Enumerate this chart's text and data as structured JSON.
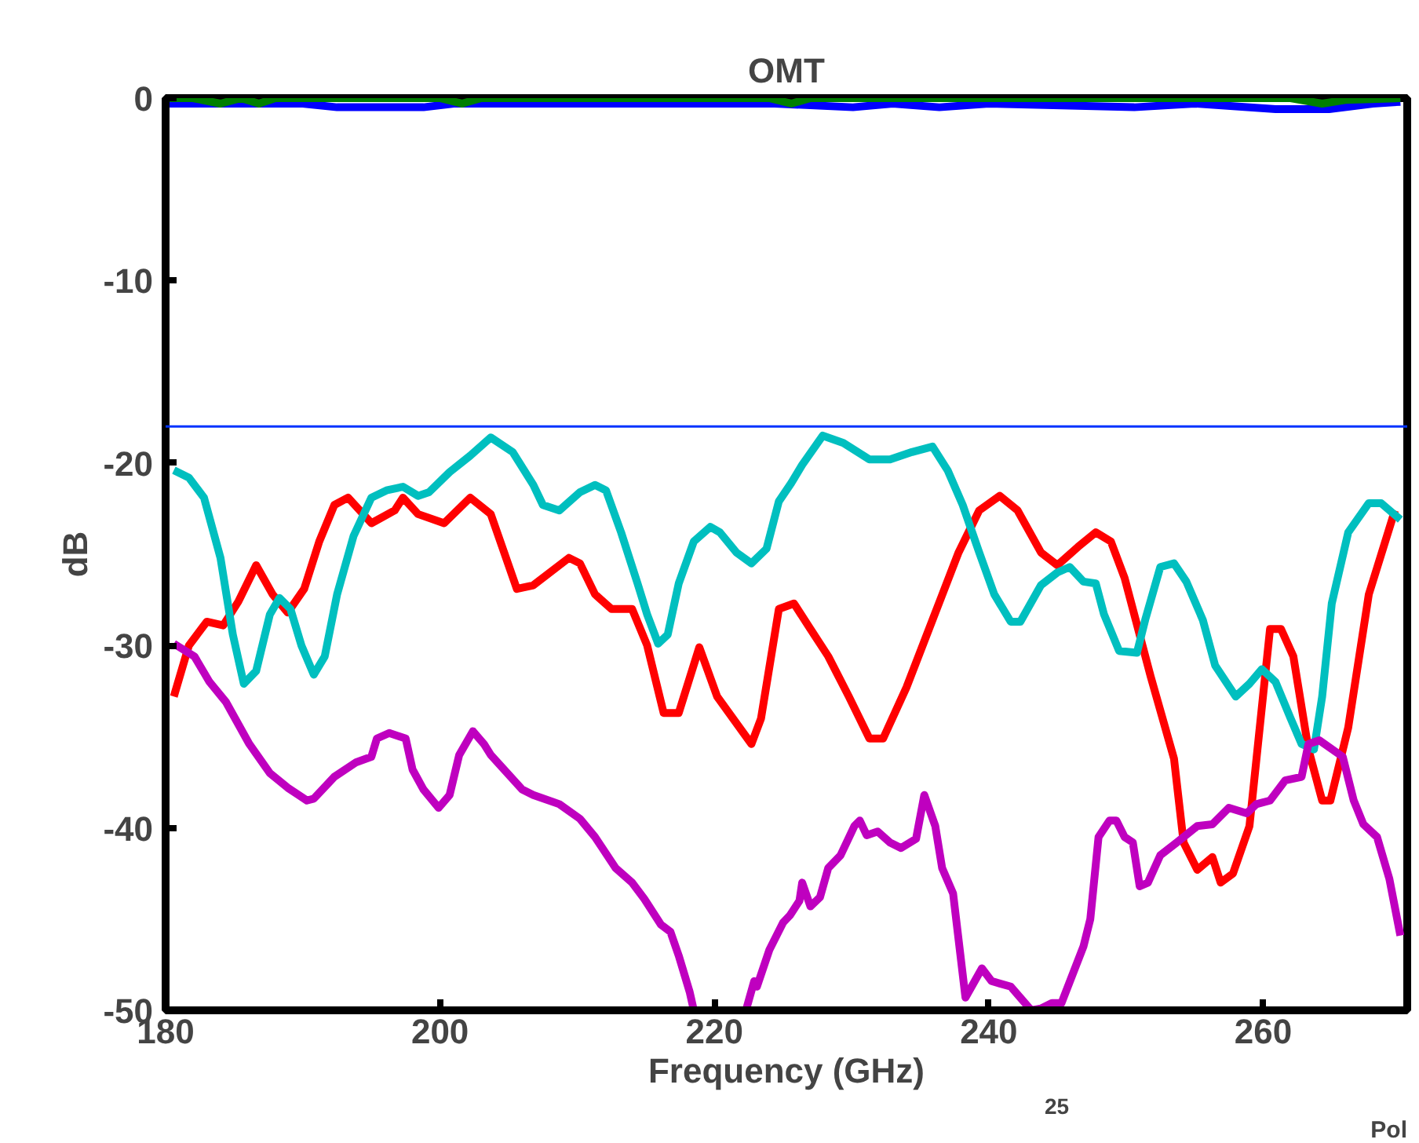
{
  "chart_data": {
    "type": "line",
    "title": "OMT",
    "xlabel": "Frequency (GHz)",
    "ylabel": "dB",
    "xlim": [
      180,
      270.5
    ],
    "ylim": [
      -50,
      0
    ],
    "xticks": [
      180,
      200,
      220,
      240,
      260
    ],
    "yticks": [
      0,
      -10,
      -20,
      -30,
      -40,
      -50
    ],
    "line_style": "solid",
    "ref_lines": [
      {
        "axis": "y",
        "value": -18,
        "color": "#0033ff"
      }
    ],
    "annotations": [
      "25",
      "Pol"
    ],
    "series": [
      {
        "color": "#0000ff",
        "x": [
          180,
          190,
          192.5,
          198.8,
          201,
          224.4,
          230.1,
          233,
          236.4,
          240,
          250.6,
          255,
          260.9,
          264.8,
          268,
          270
        ],
        "values": [
          -0.3,
          -0.3,
          -0.5,
          -0.5,
          -0.3,
          -0.3,
          -0.5,
          -0.3,
          -0.5,
          -0.3,
          -0.5,
          -0.3,
          -0.6,
          -0.6,
          -0.3,
          -0.2
        ]
      },
      {
        "color": "#007f00",
        "x": [
          180,
          182,
          184,
          185.5,
          186.8,
          188,
          200,
          201.6,
          203,
          210,
          224,
          225.6,
          227,
          240,
          262,
          264.3,
          266,
          270
        ],
        "values": [
          0,
          0,
          -0.3,
          0,
          -0.3,
          0,
          0,
          -0.3,
          0,
          0,
          0,
          -0.3,
          0,
          0,
          0,
          -0.3,
          -0.1,
          0
        ]
      },
      {
        "color": "#ff0000",
        "x": [
          180.6,
          181.7,
          183.0,
          184.2,
          185.3,
          186.6,
          187.8,
          188.9,
          190.1,
          191.2,
          192.3,
          193.3,
          195.0,
          196.7,
          197.3,
          198.4,
          200.3,
          202.2,
          203.7,
          205.6,
          206.8,
          209.4,
          210.2,
          211.3,
          212.5,
          214.0,
          215.1,
          216.3,
          217.4,
          218.9,
          220.2,
          222.7,
          223.4,
          224.7,
          225.8,
          227.0,
          228.3,
          229.8,
          231.3,
          232.3,
          234.0,
          235.9,
          237.8,
          239.3,
          240.8,
          242.1,
          243.8,
          245.0,
          246.5,
          247.8,
          248.9,
          249.9,
          251.8,
          253.5,
          254.2,
          255.2,
          256.3,
          256.9,
          257.8,
          259.0,
          260.5,
          261.3,
          262.2,
          263.3,
          264.3,
          264.9,
          266.2,
          267.7,
          269.6
        ],
        "values": [
          -32.8,
          -30.0,
          -28.7,
          -28.9,
          -27.6,
          -25.6,
          -27.2,
          -28.2,
          -26.9,
          -24.3,
          -22.3,
          -21.9,
          -23.3,
          -22.6,
          -21.9,
          -22.8,
          -23.3,
          -21.9,
          -22.8,
          -26.9,
          -26.7,
          -25.2,
          -25.5,
          -27.2,
          -28.0,
          -28.0,
          -30.0,
          -33.7,
          -33.7,
          -30.1,
          -32.8,
          -35.4,
          -34.0,
          -28.0,
          -27.7,
          -29.1,
          -30.6,
          -32.8,
          -35.1,
          -35.1,
          -32.3,
          -28.6,
          -24.9,
          -22.6,
          -21.8,
          -22.6,
          -24.9,
          -25.6,
          -24.6,
          -23.8,
          -24.3,
          -26.3,
          -31.7,
          -36.2,
          -40.8,
          -42.3,
          -41.6,
          -43.0,
          -42.5,
          -39.9,
          -29.1,
          -29.1,
          -30.6,
          -35.7,
          -38.5,
          -38.5,
          -34.5,
          -27.2,
          -22.6
        ]
      },
      {
        "color": "#00bfbf",
        "x": [
          180.6,
          181.7,
          182.8,
          184.0,
          184.9,
          185.7,
          186.6,
          187.6,
          188.3,
          189.1,
          189.9,
          190.8,
          191.6,
          192.5,
          193.7,
          195.0,
          196.1,
          197.3,
          198.4,
          199.2,
          200.7,
          202.2,
          203.7,
          205.3,
          206.8,
          207.5,
          208.7,
          210.2,
          211.3,
          212.1,
          213.2,
          214.4,
          215.1,
          215.9,
          216.6,
          217.4,
          218.5,
          219.7,
          220.4,
          221.6,
          222.7,
          223.8,
          224.7,
          225.6,
          226.4,
          227.9,
          229.4,
          231.3,
          232.8,
          234.4,
          235.9,
          237.0,
          238.1,
          239.3,
          240.4,
          241.6,
          242.3,
          243.8,
          245.0,
          245.9,
          246.9,
          247.8,
          248.4,
          249.5,
          250.8,
          251.4,
          252.5,
          253.5,
          254.4,
          255.6,
          256.5,
          258.0,
          259.0,
          259.9,
          260.9,
          262.0,
          262.8,
          263.7,
          264.3,
          265.0,
          266.2,
          267.7,
          268.6,
          270.0
        ],
        "values": [
          -20.4,
          -20.8,
          -21.9,
          -25.2,
          -29.4,
          -32.1,
          -31.4,
          -28.3,
          -27.4,
          -28.0,
          -30.0,
          -31.6,
          -30.6,
          -27.2,
          -24.0,
          -21.9,
          -21.5,
          -21.3,
          -21.8,
          -21.6,
          -20.5,
          -19.6,
          -18.6,
          -19.4,
          -21.2,
          -22.3,
          -22.6,
          -21.6,
          -21.2,
          -21.5,
          -23.8,
          -26.6,
          -28.3,
          -29.9,
          -29.4,
          -26.6,
          -24.3,
          -23.5,
          -23.8,
          -24.9,
          -25.5,
          -24.7,
          -22.1,
          -21.1,
          -20.1,
          -18.5,
          -18.9,
          -19.8,
          -19.8,
          -19.4,
          -19.1,
          -20.4,
          -22.3,
          -24.9,
          -27.2,
          -28.7,
          -28.7,
          -26.7,
          -26.0,
          -25.7,
          -26.5,
          -26.6,
          -28.3,
          -30.3,
          -30.4,
          -28.6,
          -25.7,
          -25.5,
          -26.5,
          -28.6,
          -31.1,
          -32.8,
          -32.1,
          -31.3,
          -32.0,
          -34.0,
          -35.4,
          -35.7,
          -32.8,
          -27.7,
          -23.8,
          -22.2,
          -22.2,
          -23.1
        ]
      },
      {
        "color": "#bf00bf",
        "x": [
          180.6,
          182.1,
          183.2,
          184.4,
          186.1,
          187.6,
          188.9,
          190.3,
          190.8,
          192.3,
          193.9,
          195.0,
          195.4,
          196.3,
          197.5,
          198.0,
          198.8,
          199.9,
          200.7,
          201.4,
          202.4,
          203.2,
          203.7,
          206.0,
          206.8,
          208.7,
          210.2,
          211.3,
          212.8,
          214.0,
          214.9,
          216.1,
          216.8,
          217.4,
          218.2,
          218.5,
          220.4,
          222.3,
          222.9,
          223.1,
          224.0,
          225.0,
          225.5,
          226.2,
          226.4,
          227.0,
          227.7,
          228.3,
          229.2,
          230.2,
          230.6,
          231.1,
          231.9,
          232.8,
          233.6,
          234.7,
          235.3,
          236.1,
          236.6,
          237.4,
          238.3,
          239.5,
          240.2,
          241.6,
          243.1,
          243.8,
          244.6,
          245.3,
          246.9,
          247.4,
          248.0,
          248.8,
          249.3,
          249.9,
          250.5,
          251.0,
          251.6,
          252.5,
          253.7,
          255.2,
          256.3,
          257.5,
          258.8,
          259.5,
          260.5,
          261.6,
          262.8,
          263.3,
          264.1,
          265.8,
          266.6,
          267.3,
          268.3,
          269.2,
          270.0
        ],
        "values": [
          -29.9,
          -30.6,
          -32.0,
          -33.1,
          -35.4,
          -37.0,
          -37.8,
          -38.5,
          -38.4,
          -37.2,
          -36.4,
          -36.1,
          -35.1,
          -34.8,
          -35.1,
          -36.8,
          -37.9,
          -38.9,
          -38.2,
          -36.0,
          -34.7,
          -35.4,
          -36.0,
          -37.9,
          -38.2,
          -38.7,
          -39.5,
          -40.5,
          -42.2,
          -43.0,
          -43.9,
          -45.3,
          -45.7,
          -47.0,
          -49.0,
          -50,
          null,
          -50,
          -48.4,
          -48.7,
          -46.7,
          -45.2,
          -44.8,
          -44.0,
          -43.0,
          -44.3,
          -43.8,
          -42.2,
          -41.5,
          -39.9,
          -39.6,
          -40.4,
          -40.2,
          -40.8,
          -41.1,
          -40.6,
          -38.2,
          -39.9,
          -42.2,
          -43.6,
          -49.3,
          -47.7,
          -48.4,
          -48.7,
          -50,
          -49.9,
          -49.6,
          -49.6,
          -46.5,
          -45.0,
          -40.5,
          -39.6,
          -39.6,
          -40.5,
          -40.8,
          -43.2,
          -43.0,
          -41.5,
          -40.8,
          -39.9,
          -39.8,
          -38.9,
          -39.2,
          -38.7,
          -38.5,
          -37.4,
          -37.2,
          -35.4,
          -35.2,
          -36.1,
          -38.5,
          -39.8,
          -40.5,
          -42.8,
          -45.9
        ]
      }
    ]
  }
}
